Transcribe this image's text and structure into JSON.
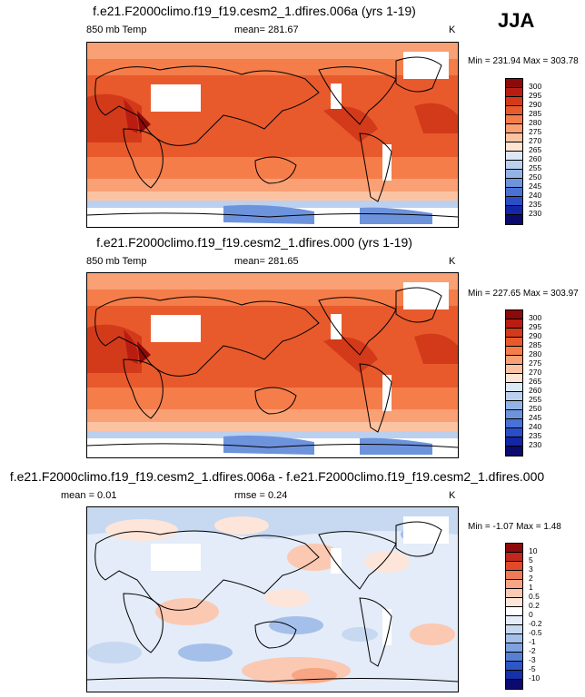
{
  "season": "JJA",
  "panels": [
    {
      "title": "f.e21.F2000climo.f19_f19.cesm2_1.dfires.006a (yrs 1-19)",
      "left_label": "850 mb Temp",
      "center_label": "mean= 281.67",
      "units": "K",
      "minmax": "Min = 231.94 Max = 303.78",
      "levels": [
        "300",
        "295",
        "290",
        "285",
        "280",
        "275",
        "270",
        "265",
        "260",
        "255",
        "250",
        "245",
        "240",
        "235",
        "230"
      ],
      "colors": [
        "#8c0a0a",
        "#b91d11",
        "#d33a1a",
        "#e85a2c",
        "#f47d4a",
        "#f9a074",
        "#fcc3a2",
        "#fde4d3",
        "#dde8f6",
        "#bad0ee",
        "#93b3e6",
        "#6e93dd",
        "#4a72d4",
        "#2b4ec6",
        "#1326a6",
        "#0b0a6e"
      ]
    },
    {
      "title": "f.e21.F2000climo.f19_f19.cesm2_1.dfires.000 (yrs 1-19)",
      "left_label": "850 mb Temp",
      "center_label": "mean= 281.65",
      "units": "K",
      "minmax": "Min = 227.65 Max = 303.97",
      "levels": [
        "300",
        "295",
        "290",
        "285",
        "280",
        "275",
        "270",
        "265",
        "260",
        "255",
        "250",
        "245",
        "240",
        "235",
        "230"
      ],
      "colors": [
        "#8c0a0a",
        "#b91d11",
        "#d33a1a",
        "#e85a2c",
        "#f47d4a",
        "#f9a074",
        "#fcc3a2",
        "#fde4d3",
        "#dde8f6",
        "#bad0ee",
        "#93b3e6",
        "#6e93dd",
        "#4a72d4",
        "#2b4ec6",
        "#1326a6",
        "#0b0a6e"
      ]
    },
    {
      "title": "f.e21.F2000climo.f19_f19.cesm2_1.dfires.006a - f.e21.F2000climo.f19_f19.cesm2_1.dfires.000",
      "left_label": "mean =   0.01",
      "center_label": "rmse =   0.24",
      "units": "K",
      "minmax": "Min =  -1.07 Max =   1.48",
      "levels": [
        "10",
        "5",
        "3",
        "2",
        "1",
        "0.5",
        "0.2",
        "0",
        "-0.2",
        "-0.5",
        "-1",
        "-2",
        "-3",
        "-5",
        "-10"
      ],
      "colors": [
        "#8c0a0a",
        "#c1271a",
        "#e04a2a",
        "#f07a55",
        "#f7a585",
        "#fbc8b2",
        "#fde5da",
        "#ffffff",
        "#e3ecf8",
        "#c7d8f1",
        "#a4bfe9",
        "#7ea2df",
        "#5580d4",
        "#2e56c6",
        "#1530a8",
        "#0b0a6e"
      ]
    }
  ]
}
